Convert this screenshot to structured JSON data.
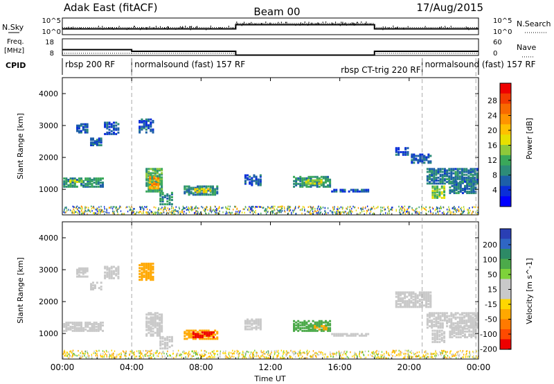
{
  "header": {
    "station": "Adak East (fitACF)",
    "beam": "Beam 00",
    "date": "17/Aug/2015"
  },
  "side_labels": {
    "nsky": "N.Sky",
    "nsearch": "N.Search",
    "freq_line1": "Freq.",
    "freq_line2": "[MHz]",
    "nave": "Nave",
    "cpid": "CPID"
  },
  "small_axes": {
    "nsky_ticks": [
      "10^5",
      "10^0"
    ],
    "nsearch_ticks": [
      "10^5",
      "10^0"
    ],
    "freq_ticks": [
      "18",
      "8"
    ],
    "nave_ticks": [
      "60",
      "0"
    ]
  },
  "cpid_segments": [
    {
      "label": "rbsp 200 RF",
      "start": 0.0,
      "end": 4.0
    },
    {
      "label": "normalsound (fast) 157 RF",
      "start": 4.0,
      "end": 20.75
    },
    {
      "label": "rbsp CT-trig 220 RF",
      "start": 16.5,
      "end": 20.75
    },
    {
      "label": "normalsound (fast) 157 RF",
      "start": 20.75,
      "end": 23.9
    }
  ],
  "axes": {
    "x_label": "Time UT",
    "x_ticks": [
      "00:00",
      "04:00",
      "08:00",
      "12:00",
      "16:00",
      "20:00",
      "00:00"
    ],
    "y_label": "Slant Range [km]",
    "y_ticks": [
      "4000",
      "3000",
      "2000",
      "1000"
    ]
  },
  "colorbars": {
    "power_label": "Power [dB]",
    "power_ticks": [
      "28",
      "24",
      "20",
      "16",
      "12",
      "8",
      "4"
    ],
    "power_colors": [
      "#ee0000",
      "#f33a00",
      "#f86a00",
      "#ff9400",
      "#ffc000",
      "#e8e000",
      "#8ec93a",
      "#3aa85a",
      "#2d8c78",
      "#1d5fa8",
      "#0a2ed8",
      "#0000ff"
    ],
    "velocity_label": "Velocity [m s^-1]",
    "velocity_ticks": [
      "200",
      "100",
      "50",
      "15",
      "-15",
      "-50",
      "-100",
      "-200"
    ],
    "velocity_colors": [
      "#2a3fb4",
      "#2f66c4",
      "#2d8a66",
      "#4caa4a",
      "#7ed23a",
      "#c9c9c9",
      "#c9c9c9",
      "#ffd700",
      "#ffa800",
      "#ff7a00",
      "#ff4a00",
      "#ee0000"
    ]
  },
  "chart_data": {
    "type": "heatmap",
    "x_range_hours": [
      0,
      24
    ],
    "y_range_km": [
      200,
      4500
    ],
    "reference_lines_hours": [
      4.0,
      20.75,
      23.85
    ],
    "nsky_levels": [
      {
        "start": 0.0,
        "end": 10.0,
        "level": 0.35
      },
      {
        "start": 10.0,
        "end": 18.0,
        "level": 0.6
      },
      {
        "start": 18.0,
        "end": 24.0,
        "level": 0.35
      }
    ],
    "freq_mhz": [
      {
        "start": 0.0,
        "end": 4.0,
        "value": 11.5
      },
      {
        "start": 4.0,
        "end": 10.0,
        "value": 10.5
      },
      {
        "start": 10.0,
        "end": 18.0,
        "value": 8.2
      },
      {
        "start": 18.0,
        "end": 24.0,
        "value": 10.5
      }
    ],
    "power_patches": [
      {
        "t0": 0.05,
        "t1": 2.4,
        "r0": 1050,
        "r1": 1350,
        "db": 10
      },
      {
        "t0": 0.4,
        "t1": 1.2,
        "r0": 1200,
        "r1": 1280,
        "db": 16
      },
      {
        "t0": 0.8,
        "t1": 1.5,
        "r0": 2750,
        "r1": 3050,
        "db": 6
      },
      {
        "t0": 1.6,
        "t1": 2.3,
        "r0": 2350,
        "r1": 2600,
        "db": 6
      },
      {
        "t0": 2.4,
        "t1": 3.3,
        "r0": 2700,
        "r1": 3100,
        "db": 6
      },
      {
        "t0": 4.4,
        "t1": 5.3,
        "r0": 2750,
        "r1": 3200,
        "db": 6
      },
      {
        "t0": 4.8,
        "t1": 5.8,
        "r0": 900,
        "r1": 1650,
        "db": 12
      },
      {
        "t0": 5.0,
        "t1": 5.6,
        "r0": 1000,
        "r1": 1400,
        "db": 22
      },
      {
        "t0": 5.6,
        "t1": 6.4,
        "r0": 500,
        "r1": 900,
        "db": 10
      },
      {
        "t0": 7.0,
        "t1": 9.0,
        "r0": 800,
        "r1": 1100,
        "db": 9
      },
      {
        "t0": 7.6,
        "t1": 8.6,
        "r0": 880,
        "r1": 1020,
        "db": 18
      },
      {
        "t0": 10.5,
        "t1": 11.5,
        "r0": 1100,
        "r1": 1450,
        "db": 6
      },
      {
        "t0": 13.3,
        "t1": 15.5,
        "r0": 1050,
        "r1": 1400,
        "db": 10
      },
      {
        "t0": 14.0,
        "t1": 15.0,
        "r0": 1150,
        "r1": 1300,
        "db": 16
      },
      {
        "t0": 15.5,
        "t1": 17.7,
        "r0": 900,
        "r1": 1000,
        "db": 6
      },
      {
        "t0": 19.2,
        "t1": 20.0,
        "r0": 2050,
        "r1": 2300,
        "db": 6
      },
      {
        "t0": 20.1,
        "t1": 21.3,
        "r0": 1800,
        "r1": 2100,
        "db": 6
      },
      {
        "t0": 21.0,
        "t1": 24.0,
        "r0": 1150,
        "r1": 1650,
        "db": 8
      },
      {
        "t0": 21.3,
        "t1": 22.1,
        "r0": 700,
        "r1": 1100,
        "db": 14
      },
      {
        "t0": 22.3,
        "t1": 23.9,
        "r0": 850,
        "r1": 1250,
        "db": 8
      }
    ],
    "velocity_patches": [
      {
        "t0": 0.05,
        "t1": 2.4,
        "r0": 1050,
        "r1": 1350,
        "v": 0
      },
      {
        "t0": 0.8,
        "t1": 1.5,
        "r0": 2750,
        "r1": 3050,
        "v": 0
      },
      {
        "t0": 1.6,
        "t1": 2.3,
        "r0": 2350,
        "r1": 2600,
        "v": 0
      },
      {
        "t0": 2.4,
        "t1": 3.3,
        "r0": 2700,
        "r1": 3100,
        "v": 0
      },
      {
        "t0": 4.4,
        "t1": 5.3,
        "r0": 2650,
        "r1": 3200,
        "v": -60
      },
      {
        "t0": 4.8,
        "t1": 5.8,
        "r0": 900,
        "r1": 1650,
        "v": 0
      },
      {
        "t0": 5.6,
        "t1": 6.4,
        "r0": 500,
        "r1": 900,
        "v": 0
      },
      {
        "t0": 7.0,
        "t1": 9.0,
        "r0": 800,
        "r1": 1100,
        "v": -70
      },
      {
        "t0": 7.5,
        "t1": 8.8,
        "r0": 850,
        "r1": 1050,
        "v": -200
      },
      {
        "t0": 10.5,
        "t1": 11.5,
        "r0": 1100,
        "r1": 1450,
        "v": 0
      },
      {
        "t0": 13.3,
        "t1": 15.5,
        "r0": 1050,
        "r1": 1400,
        "v": 60
      },
      {
        "t0": 14.5,
        "t1": 15.3,
        "r0": 1100,
        "r1": 1250,
        "v": -60
      },
      {
        "t0": 15.5,
        "t1": 17.7,
        "r0": 900,
        "r1": 1000,
        "v": 0
      },
      {
        "t0": 19.2,
        "t1": 21.3,
        "r0": 1800,
        "r1": 2300,
        "v": 0
      },
      {
        "t0": 21.0,
        "t1": 24.0,
        "r0": 1150,
        "r1": 1650,
        "v": 0
      },
      {
        "t0": 21.3,
        "t1": 22.1,
        "r0": 700,
        "r1": 1100,
        "v": 0
      },
      {
        "t0": 22.3,
        "t1": 23.9,
        "r0": 850,
        "r1": 1250,
        "v": 0
      }
    ],
    "near_range_clutter_km": [
      200,
      450
    ]
  }
}
